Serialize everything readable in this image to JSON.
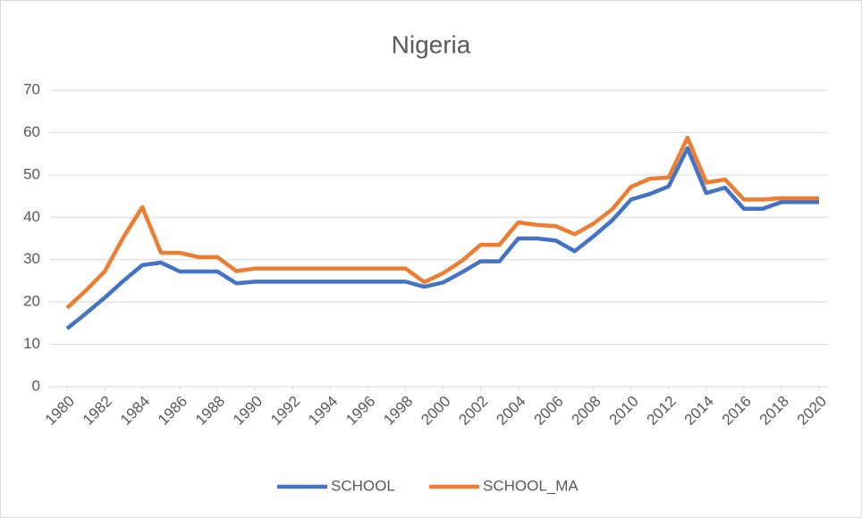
{
  "chart_data": {
    "type": "line",
    "title": "Nigeria",
    "x": [
      1980,
      1981,
      1982,
      1983,
      1984,
      1985,
      1986,
      1987,
      1988,
      1989,
      1990,
      1991,
      1992,
      1993,
      1994,
      1995,
      1996,
      1997,
      1998,
      1999,
      2000,
      2001,
      2002,
      2003,
      2004,
      2005,
      2006,
      2007,
      2008,
      2009,
      2010,
      2011,
      2012,
      2013,
      2014,
      2015,
      2016,
      2017,
      2018,
      2019,
      2020
    ],
    "series": [
      {
        "name": "SCHOOL",
        "color": "#4472c4",
        "values": [
          13.7,
          17.3,
          21,
          25,
          28.7,
          29.3,
          27.2,
          27.2,
          27.2,
          24.4,
          24.8,
          24.8,
          24.8,
          24.8,
          24.8,
          24.8,
          24.8,
          24.8,
          24.8,
          23.6,
          24.6,
          27,
          29.6,
          29.6,
          35,
          35,
          34.5,
          32,
          35.5,
          39.3,
          44.2,
          45.5,
          47.3,
          56.3,
          45.7,
          47,
          42,
          42,
          43.6,
          43.6,
          43.6
        ]
      },
      {
        "name": "SCHOOL_MA",
        "color": "#ed7d31",
        "values": [
          18.6,
          22.7,
          27.2,
          35.3,
          42.4,
          31.6,
          31.6,
          30.6,
          30.6,
          27.3,
          27.9,
          27.9,
          27.9,
          27.9,
          27.9,
          27.9,
          27.9,
          27.9,
          27.9,
          24.7,
          26.8,
          29.7,
          33.5,
          33.5,
          38.8,
          38.2,
          37.9,
          36,
          38.5,
          41.9,
          47.2,
          49.1,
          49.4,
          58.8,
          48.2,
          48.9,
          44.2,
          44.2,
          44.5,
          44.5,
          44.5
        ]
      }
    ],
    "xlim": [
      1980,
      2020
    ],
    "xticks": [
      1980,
      1982,
      1984,
      1986,
      1988,
      1990,
      1992,
      1994,
      1996,
      1998,
      2000,
      2002,
      2004,
      2006,
      2008,
      2010,
      2012,
      2014,
      2016,
      2018,
      2020
    ],
    "ylim": [
      0,
      70
    ],
    "yticks": [
      0,
      10,
      20,
      30,
      40,
      50,
      60,
      70
    ],
    "grid": true,
    "legend": "bottom"
  }
}
